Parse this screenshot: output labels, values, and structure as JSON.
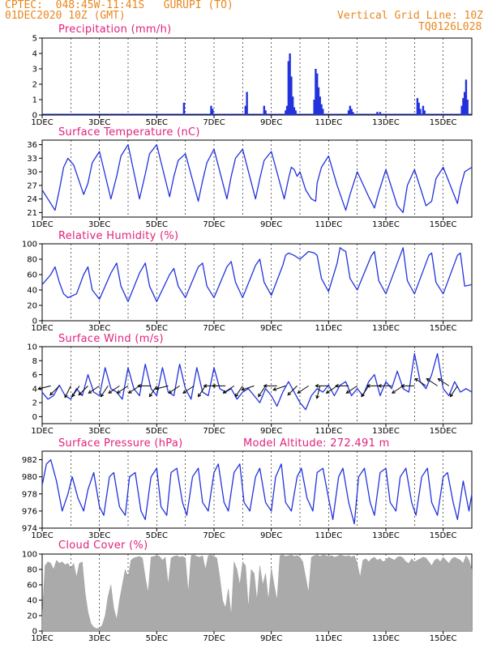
{
  "header": {
    "source": "CPTEC:",
    "location": "048:45W-11:41S   GURUPI (TO)",
    "run_time": "01DEC2020 10Z (GMT)",
    "grid_note": "Vertical Grid Line: 10Z",
    "model_code": "TQ0126L028",
    "model_altitude": "Model Altitude: 272.491 m"
  },
  "colors": {
    "header": "#e8871e",
    "panel_title": "#e0227e",
    "series": "#2233dd",
    "wind_arrow": "#000000",
    "cloud_fill": "#aaaaaa",
    "grid": "#000000"
  },
  "x_axis": {
    "ticks": [
      "1DEC",
      "3DEC",
      "5DEC",
      "7DEC",
      "9DEC",
      "11DEC",
      "13DEC",
      "15DEC"
    ],
    "tick_days": [
      1,
      3,
      5,
      7,
      9,
      11,
      13,
      15
    ],
    "range_days": [
      1,
      16
    ]
  },
  "chart_data": [
    {
      "id": "precip",
      "type": "bar",
      "title": "Precipitation (mm/h)",
      "ylim": [
        0,
        5
      ],
      "yticks": [
        0,
        1,
        2,
        3,
        4,
        5
      ],
      "x_unit": "day of Dec 2020",
      "x": [
        5.95,
        6.9,
        6.95,
        8.1,
        8.15,
        8.75,
        8.8,
        9.5,
        9.55,
        9.6,
        9.65,
        9.7,
        9.75,
        9.8,
        9.85,
        10.5,
        10.55,
        10.6,
        10.65,
        10.7,
        10.75,
        10.8,
        11.7,
        11.75,
        11.8,
        11.85,
        12.7,
        12.8,
        14.1,
        14.15,
        14.2,
        14.3,
        14.35,
        15.65,
        15.7,
        15.75,
        15.8,
        15.85
      ],
      "values": [
        0.8,
        0.6,
        0.4,
        0.6,
        1.5,
        0.6,
        0.3,
        0.3,
        0.6,
        3.5,
        4.0,
        2.5,
        1.2,
        0.5,
        0.3,
        1.0,
        3.0,
        2.7,
        1.8,
        1.2,
        0.7,
        0.4,
        0.3,
        0.6,
        0.4,
        0.2,
        0.2,
        0.2,
        1.1,
        0.8,
        0.4,
        0.6,
        0.3,
        0.6,
        1.1,
        1.5,
        2.3,
        1.0
      ]
    },
    {
      "id": "temp",
      "type": "line",
      "title": "Surface Temperature (nC)",
      "ylim": [
        20,
        37
      ],
      "yticks": [
        21,
        24,
        27,
        30,
        33,
        36
      ],
      "x": [
        1.0,
        1.3,
        1.45,
        1.6,
        1.75,
        1.9,
        2.1,
        2.45,
        2.6,
        2.75,
        3.0,
        3.4,
        3.6,
        3.75,
        4.0,
        4.4,
        4.6,
        4.75,
        5.0,
        5.45,
        5.6,
        5.75,
        6.0,
        6.45,
        6.6,
        6.75,
        7.0,
        7.45,
        7.6,
        7.75,
        8.0,
        8.45,
        8.6,
        8.75,
        9.0,
        9.45,
        9.6,
        9.7,
        9.8,
        9.9,
        10.0,
        10.2,
        10.4,
        10.55,
        10.6,
        10.75,
        11.0,
        11.3,
        11.6,
        11.75,
        12.0,
        12.4,
        12.6,
        12.75,
        13.0,
        13.4,
        13.6,
        13.75,
        14.0,
        14.4,
        14.6,
        14.75,
        15.0,
        15.5,
        15.6,
        15.75,
        16.0
      ],
      "values": [
        26.0,
        23.0,
        21.5,
        26.0,
        31.0,
        33.0,
        31.5,
        25.0,
        27.5,
        32.0,
        34.5,
        24.0,
        29.0,
        33.5,
        36.0,
        24.0,
        29.5,
        34.0,
        36.0,
        24.5,
        29.0,
        32.5,
        34.0,
        23.5,
        28.0,
        32.0,
        35.0,
        24.0,
        29.0,
        33.0,
        35.0,
        24.0,
        28.5,
        32.5,
        34.5,
        24.0,
        28.5,
        31.0,
        30.5,
        29.0,
        30.0,
        26.0,
        24.0,
        23.5,
        27.5,
        31.0,
        33.5,
        27.0,
        21.5,
        25.0,
        30.0,
        24.5,
        22.0,
        25.5,
        30.5,
        22.5,
        21.0,
        27.0,
        30.5,
        22.5,
        23.5,
        28.5,
        31.0,
        23.0,
        26.5,
        30.0,
        31.0
      ]
    },
    {
      "id": "rh",
      "type": "line",
      "title": "Relative Humidity (%)",
      "ylim": [
        0,
        100
      ],
      "yticks": [
        0,
        20,
        40,
        60,
        80,
        100
      ],
      "x": [
        1.0,
        1.3,
        1.45,
        1.6,
        1.75,
        1.9,
        2.2,
        2.45,
        2.6,
        2.75,
        3.0,
        3.4,
        3.6,
        3.75,
        4.0,
        4.4,
        4.6,
        4.75,
        5.0,
        5.45,
        5.6,
        5.75,
        6.0,
        6.45,
        6.6,
        6.75,
        7.0,
        7.45,
        7.6,
        7.75,
        8.0,
        8.45,
        8.6,
        8.75,
        9.0,
        9.4,
        9.5,
        9.6,
        9.8,
        10.0,
        10.3,
        10.5,
        10.6,
        10.75,
        11.0,
        11.3,
        11.4,
        11.5,
        11.6,
        11.75,
        12.0,
        12.5,
        12.6,
        12.75,
        13.0,
        13.5,
        13.6,
        13.75,
        14.0,
        14.5,
        14.6,
        14.75,
        15.0,
        15.5,
        15.6,
        15.75,
        16.0
      ],
      "values": [
        47.0,
        60.0,
        70.0,
        50.0,
        35.0,
        30.0,
        35.0,
        60.0,
        70.0,
        40.0,
        28.0,
        62.0,
        75.0,
        45.0,
        25.0,
        62.0,
        75.0,
        45.0,
        25.0,
        60.0,
        68.0,
        45.0,
        30.0,
        70.0,
        75.0,
        45.0,
        30.0,
        70.0,
        77.0,
        50.0,
        30.0,
        72.0,
        80.0,
        50.0,
        33.0,
        72.0,
        85.0,
        88.0,
        85.0,
        80.0,
        90.0,
        88.0,
        85.0,
        55.0,
        38.0,
        75.0,
        95.0,
        92.0,
        90.0,
        55.0,
        40.0,
        85.0,
        90.0,
        52.0,
        35.0,
        85.0,
        95.0,
        52.0,
        35.0,
        85.0,
        88.0,
        50.0,
        35.0,
        85.0,
        88.0,
        45.0,
        47.0
      ]
    },
    {
      "id": "wind",
      "type": "line",
      "title": "Surface Wind (m/s)",
      "ylim": [
        -1,
        10
      ],
      "yticks": [
        0,
        2,
        4,
        6,
        8,
        10
      ],
      "x": [
        1.0,
        1.2,
        1.4,
        1.6,
        1.8,
        2.0,
        2.2,
        2.4,
        2.6,
        2.8,
        3.0,
        3.2,
        3.4,
        3.6,
        3.8,
        4.0,
        4.2,
        4.4,
        4.6,
        4.8,
        5.0,
        5.2,
        5.4,
        5.6,
        5.8,
        6.0,
        6.2,
        6.4,
        6.6,
        6.8,
        7.0,
        7.2,
        7.4,
        7.6,
        7.8,
        8.0,
        8.2,
        8.4,
        8.6,
        8.8,
        9.0,
        9.2,
        9.4,
        9.6,
        9.8,
        10.0,
        10.2,
        10.4,
        10.6,
        10.8,
        11.0,
        11.2,
        11.4,
        11.6,
        11.8,
        12.0,
        12.2,
        12.4,
        12.6,
        12.8,
        13.0,
        13.2,
        13.4,
        13.6,
        13.8,
        14.0,
        14.2,
        14.4,
        14.6,
        14.8,
        15.0,
        15.2,
        15.4,
        15.6,
        15.8,
        16.0
      ],
      "values": [
        3.5,
        2.5,
        3.0,
        4.5,
        3.0,
        2.5,
        4.0,
        3.0,
        6.0,
        3.5,
        3.0,
        7.0,
        4.0,
        3.5,
        2.5,
        7.0,
        4.0,
        3.0,
        7.5,
        4.0,
        3.0,
        7.0,
        3.5,
        3.0,
        7.5,
        4.0,
        2.5,
        7.0,
        3.5,
        3.0,
        7.0,
        4.0,
        3.5,
        4.0,
        2.5,
        3.5,
        4.0,
        3.0,
        2.0,
        4.0,
        3.0,
        1.5,
        3.5,
        5.0,
        3.5,
        2.0,
        1.0,
        3.0,
        4.0,
        3.5,
        4.5,
        3.0,
        4.5,
        5.0,
        3.0,
        4.0,
        3.0,
        5.0,
        6.0,
        3.0,
        5.0,
        4.0,
        6.5,
        4.0,
        3.5,
        9.0,
        5.0,
        4.0,
        6.0,
        9.0,
        4.0,
        3.0,
        5.0,
        3.5,
        4.0,
        3.5
      ],
      "arrow_days": [
        1.3,
        1.6,
        2.0,
        2.3,
        2.6,
        3.0,
        3.3,
        3.7,
        4.0,
        4.4,
        4.8,
        5.0,
        5.4,
        5.8,
        6.3,
        6.7,
        7.1,
        7.4,
        7.7,
        8.0,
        8.4,
        8.8,
        9.2,
        9.5,
        9.9,
        10.3,
        10.7,
        11.0,
        11.3,
        11.7,
        12.0,
        12.4,
        12.8,
        13.2,
        13.6,
        14.0,
        14.4,
        14.8,
        15.2,
        15.5
      ],
      "arrow_speed": [
        4.4,
        4.4,
        4.4,
        4.4,
        4.4,
        4.4,
        4.4,
        4.4,
        4.4,
        4.4,
        4.4,
        4.4,
        4.4,
        4.4,
        4.4,
        4.4,
        4.4,
        4.4,
        4.4,
        4.4,
        4.4,
        4.4,
        4.4,
        4.4,
        4.4,
        4.4,
        4.4,
        4.4,
        4.4,
        4.4,
        4.4,
        4.4,
        4.4,
        4.4,
        4.4,
        4.4,
        4.4,
        4.4,
        4.4,
        4.4
      ],
      "arrow_u": [
        -4,
        -3,
        -2,
        -2,
        -3,
        -3,
        -2,
        -3,
        -3,
        -3,
        -4,
        -2,
        -4,
        -3,
        -3,
        -2,
        -4,
        -4,
        -3,
        -2,
        -3,
        -2,
        -4,
        -3,
        -2,
        -3,
        -1,
        -4,
        -3,
        -4,
        -3,
        -2,
        -4,
        -4,
        -3,
        -4,
        -3,
        -3,
        -3,
        -2
      ],
      "arrow_v": [
        -1,
        -3,
        -4,
        -3,
        -3,
        -2,
        -3,
        -2,
        -2,
        -2,
        0,
        -3,
        -1,
        -2,
        -2,
        -3,
        0,
        0,
        -2,
        -3,
        -1,
        -3,
        0,
        -1,
        -2,
        -2,
        -4,
        0,
        -2,
        0,
        -2,
        -3,
        0,
        0,
        -2,
        0,
        2,
        2,
        2,
        -3
      ]
    },
    {
      "id": "pres",
      "type": "line",
      "title": "Surface Pressure (hPa)",
      "ylim": [
        974,
        983
      ],
      "yticks": [
        974,
        976,
        978,
        980,
        982
      ],
      "x": [
        1.0,
        1.15,
        1.3,
        1.5,
        1.7,
        1.9,
        2.05,
        2.25,
        2.45,
        2.6,
        2.8,
        3.0,
        3.15,
        3.35,
        3.5,
        3.7,
        3.9,
        4.05,
        4.25,
        4.45,
        4.6,
        4.8,
        5.0,
        5.15,
        5.35,
        5.5,
        5.7,
        5.9,
        6.05,
        6.25,
        6.45,
        6.6,
        6.8,
        7.0,
        7.15,
        7.35,
        7.5,
        7.7,
        7.9,
        8.05,
        8.25,
        8.45,
        8.6,
        8.8,
        9.0,
        9.15,
        9.35,
        9.5,
        9.7,
        9.9,
        10.05,
        10.25,
        10.45,
        10.6,
        10.8,
        11.0,
        11.15,
        11.35,
        11.5,
        11.7,
        11.9,
        12.05,
        12.25,
        12.45,
        12.6,
        12.8,
        13.0,
        13.15,
        13.35,
        13.5,
        13.7,
        13.9,
        14.05,
        14.25,
        14.45,
        14.6,
        14.8,
        15.0,
        15.15,
        15.35,
        15.5,
        15.7,
        15.9,
        16.0
      ],
      "values": [
        979.0,
        981.5,
        982.0,
        979.5,
        976.0,
        978.0,
        980.0,
        977.5,
        976.0,
        978.5,
        980.5,
        976.5,
        975.5,
        980.0,
        980.5,
        976.5,
        975.5,
        980.0,
        980.5,
        976.0,
        975.0,
        980.0,
        981.0,
        976.5,
        975.5,
        980.5,
        981.0,
        977.0,
        975.5,
        980.0,
        981.0,
        977.0,
        976.0,
        980.5,
        981.5,
        977.0,
        976.0,
        980.5,
        981.5,
        977.0,
        976.0,
        980.0,
        981.0,
        977.0,
        976.0,
        980.0,
        981.5,
        977.0,
        976.0,
        980.0,
        981.0,
        977.5,
        976.0,
        980.5,
        981.0,
        977.5,
        975.0,
        980.0,
        981.0,
        977.0,
        974.5,
        980.0,
        981.0,
        977.0,
        975.5,
        980.5,
        981.0,
        977.0,
        976.0,
        980.0,
        981.0,
        977.0,
        975.5,
        980.0,
        981.0,
        977.0,
        975.5,
        980.0,
        980.5,
        977.0,
        975.0,
        979.5,
        976.0,
        978.0
      ]
    },
    {
      "id": "cloud",
      "type": "area",
      "title": "Cloud Cover (%)",
      "ylim": [
        0,
        100
      ],
      "yticks": [
        0,
        20,
        40,
        60,
        80,
        100
      ],
      "x": [
        1.0,
        1.1,
        1.2,
        1.3,
        1.4,
        1.5,
        1.6,
        1.7,
        1.8,
        1.9,
        2.0,
        2.1,
        2.2,
        2.3,
        2.4,
        2.5,
        2.6,
        2.7,
        2.8,
        2.9,
        3.0,
        3.1,
        3.2,
        3.3,
        3.4,
        3.5,
        3.6,
        3.7,
        3.8,
        3.9,
        4.0,
        4.1,
        4.2,
        4.3,
        4.4,
        4.5,
        4.6,
        4.7,
        4.8,
        4.9,
        5.0,
        5.1,
        5.2,
        5.3,
        5.4,
        5.5,
        5.6,
        5.7,
        5.8,
        5.9,
        6.0,
        6.1,
        6.2,
        6.3,
        6.4,
        6.5,
        6.6,
        6.7,
        6.8,
        6.9,
        7.0,
        7.1,
        7.2,
        7.3,
        7.4,
        7.5,
        7.6,
        7.7,
        7.8,
        7.9,
        8.0,
        8.1,
        8.2,
        8.3,
        8.4,
        8.5,
        8.6,
        8.7,
        8.8,
        8.9,
        9.0,
        9.1,
        9.2,
        9.3,
        9.4,
        9.5,
        9.6,
        9.7,
        9.8,
        9.9,
        10.0,
        10.1,
        10.2,
        10.3,
        10.4,
        10.5,
        10.6,
        10.7,
        10.8,
        10.9,
        11.0,
        11.1,
        11.2,
        11.3,
        11.4,
        11.5,
        11.6,
        11.7,
        11.8,
        11.9,
        12.0,
        12.1,
        12.2,
        12.3,
        12.4,
        12.5,
        12.6,
        12.7,
        12.8,
        12.9,
        13.0,
        13.1,
        13.2,
        13.3,
        13.4,
        13.5,
        13.6,
        13.7,
        13.8,
        13.9,
        14.0,
        14.1,
        14.2,
        14.3,
        14.4,
        14.5,
        14.6,
        14.7,
        14.8,
        14.9,
        15.0,
        15.1,
        15.2,
        15.3,
        15.4,
        15.5,
        15.6,
        15.7,
        15.8,
        15.9,
        16.0
      ],
      "values": [
        20,
        85,
        90,
        88,
        80,
        92,
        88,
        90,
        86,
        88,
        82,
        88,
        70,
        88,
        90,
        50,
        25,
        10,
        5,
        3,
        4,
        8,
        20,
        45,
        60,
        30,
        15,
        40,
        60,
        80,
        70,
        92,
        95,
        96,
        97,
        95,
        70,
        50,
        96,
        97,
        98,
        97,
        92,
        96,
        60,
        95,
        97,
        98,
        96,
        97,
        95,
        50,
        98,
        99,
        97,
        96,
        98,
        80,
        98,
        99,
        97,
        95,
        70,
        40,
        30,
        55,
        20,
        90,
        80,
        60,
        90,
        85,
        30,
        80,
        75,
        40,
        85,
        60,
        75,
        40,
        82,
        60,
        40,
        98,
        99,
        97,
        98,
        99,
        97,
        98,
        96,
        90,
        70,
        50,
        96,
        98,
        99,
        97,
        99,
        98,
        97,
        98,
        96,
        97,
        99,
        98,
        97,
        98,
        96,
        98,
        88,
        70,
        92,
        94,
        90,
        94,
        96,
        92,
        94,
        90,
        92,
        96,
        94,
        92,
        96,
        97,
        95,
        90,
        88,
        94,
        90,
        92,
        94,
        96,
        95,
        90,
        85,
        92,
        94,
        90,
        96,
        92,
        88,
        94,
        96,
        94,
        92,
        88,
        98,
        92,
        80
      ]
    }
  ]
}
